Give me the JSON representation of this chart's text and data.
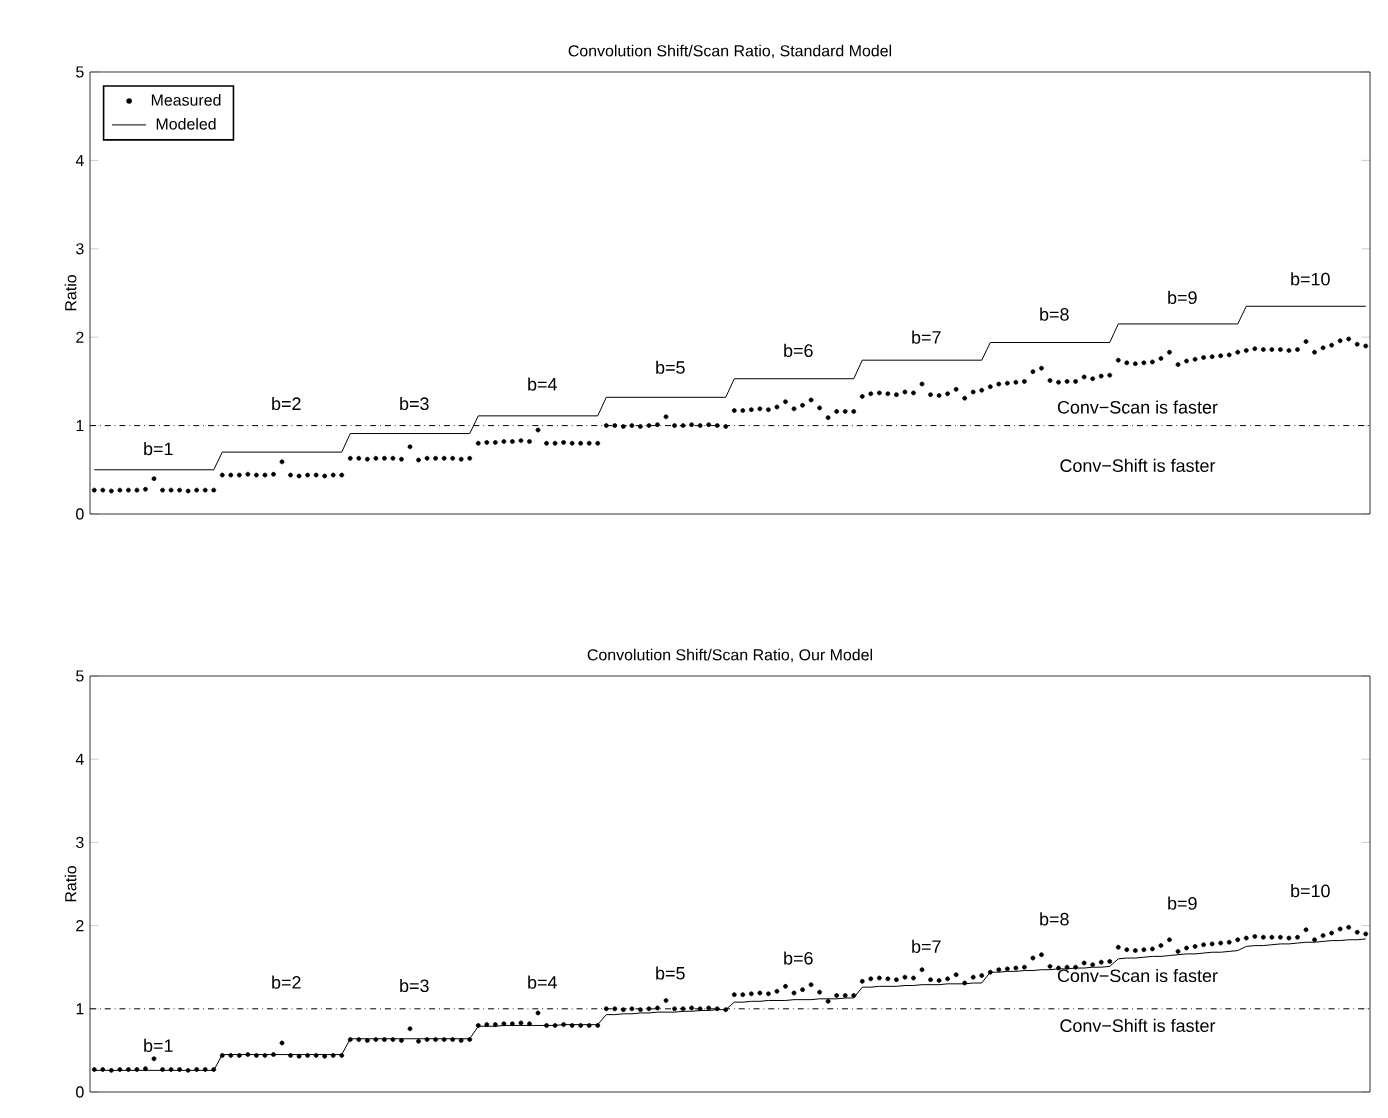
{
  "chart_data": [
    {
      "type": "scatter",
      "title": "Convolution Shift/Scan Ratio, Standard Model",
      "ylabel": "Ratio",
      "categories": [
        null,
        null,
        null,
        null,
        null,
        null,
        null,
        null,
        null,
        null,
        null,
        null,
        null,
        null,
        null,
        null,
        null,
        null,
        null,
        null,
        null,
        null,
        null,
        null,
        null,
        null,
        null,
        null,
        null,
        null,
        null,
        null,
        null,
        null,
        null,
        null,
        null,
        null,
        null,
        null,
        null,
        null,
        null,
        null,
        null,
        null,
        null,
        null,
        null,
        null,
        null,
        null,
        null,
        null,
        null,
        null,
        null,
        null,
        null,
        null,
        null,
        null,
        null,
        null,
        null,
        null,
        null,
        null,
        null,
        null,
        null,
        null,
        null,
        null,
        null,
        null,
        null,
        null,
        null,
        null,
        null,
        null,
        null,
        null,
        null,
        null,
        null,
        null,
        null,
        null,
        null,
        null,
        null,
        null,
        null,
        null,
        null,
        null,
        null,
        null,
        null,
        null,
        null,
        null,
        null,
        null,
        null,
        null,
        null,
        null,
        null,
        null,
        null,
        null,
        null,
        null,
        null,
        null,
        null,
        null,
        null,
        null,
        null,
        null,
        null,
        null,
        null,
        null,
        null,
        null,
        null,
        null,
        null,
        null,
        null,
        null,
        null,
        null,
        null,
        null,
        null,
        null,
        null,
        null,
        null,
        null,
        null,
        null,
        null,
        null
      ],
      "series": [
        {
          "name": "Measured",
          "marker": "circle",
          "color": "#000000",
          "values": [
            0.27,
            0.27,
            0.26,
            0.27,
            0.27,
            0.27,
            0.28,
            0.4,
            0.27,
            0.27,
            0.27,
            0.26,
            0.27,
            0.27,
            0.27,
            0.44,
            0.44,
            0.44,
            0.45,
            0.44,
            0.44,
            0.45,
            0.59,
            0.44,
            0.43,
            0.44,
            0.44,
            0.43,
            0.44,
            0.44,
            0.63,
            0.63,
            0.62,
            0.63,
            0.63,
            0.63,
            0.62,
            0.76,
            0.61,
            0.63,
            0.63,
            0.63,
            0.63,
            0.62,
            0.63,
            0.8,
            0.81,
            0.81,
            0.82,
            0.82,
            0.83,
            0.82,
            0.95,
            0.8,
            0.8,
            0.81,
            0.8,
            0.8,
            0.8,
            0.8,
            1.0,
            1.0,
            0.99,
            1.0,
            0.99,
            1.0,
            1.01,
            1.1,
            1.0,
            1.0,
            1.01,
            1.0,
            1.01,
            1.0,
            0.99,
            1.17,
            1.17,
            1.18,
            1.19,
            1.18,
            1.21,
            1.27,
            1.19,
            1.23,
            1.29,
            1.2,
            1.09,
            1.16,
            1.16,
            1.16,
            1.33,
            1.36,
            1.37,
            1.36,
            1.35,
            1.38,
            1.37,
            1.47,
            1.35,
            1.34,
            1.36,
            1.41,
            1.31,
            1.38,
            1.4,
            1.44,
            1.47,
            1.48,
            1.49,
            1.5,
            1.61,
            1.65,
            1.51,
            1.49,
            1.5,
            1.5,
            1.55,
            1.53,
            1.56,
            1.57,
            1.74,
            1.71,
            1.7,
            1.71,
            1.72,
            1.76,
            1.83,
            1.69,
            1.73,
            1.75,
            1.77,
            1.78,
            1.79,
            1.8,
            1.83,
            1.85,
            1.87,
            1.86,
            1.86,
            1.86,
            1.85,
            1.86,
            1.95,
            1.83,
            1.88,
            1.91,
            1.96,
            1.98,
            1.92,
            1.9
          ]
        },
        {
          "name": "Modeled",
          "type": "line",
          "marker": "none",
          "color": "#000000",
          "values": [
            0.5,
            0.5,
            0.5,
            0.5,
            0.5,
            0.5,
            0.5,
            0.5,
            0.5,
            0.5,
            0.5,
            0.5,
            0.5,
            0.5,
            0.5,
            0.7,
            0.7,
            0.7,
            0.7,
            0.7,
            0.7,
            0.7,
            0.7,
            0.7,
            0.7,
            0.7,
            0.7,
            0.7,
            0.7,
            0.7,
            0.91,
            0.91,
            0.91,
            0.91,
            0.91,
            0.91,
            0.91,
            0.91,
            0.91,
            0.91,
            0.91,
            0.91,
            0.91,
            0.91,
            0.91,
            1.11,
            1.11,
            1.11,
            1.11,
            1.11,
            1.11,
            1.11,
            1.11,
            1.11,
            1.11,
            1.11,
            1.11,
            1.11,
            1.11,
            1.11,
            1.32,
            1.32,
            1.32,
            1.32,
            1.32,
            1.32,
            1.32,
            1.32,
            1.32,
            1.32,
            1.32,
            1.32,
            1.32,
            1.32,
            1.32,
            1.53,
            1.53,
            1.53,
            1.53,
            1.53,
            1.53,
            1.53,
            1.53,
            1.53,
            1.53,
            1.53,
            1.53,
            1.53,
            1.53,
            1.53,
            1.74,
            1.74,
            1.74,
            1.74,
            1.74,
            1.74,
            1.74,
            1.74,
            1.74,
            1.74,
            1.74,
            1.74,
            1.74,
            1.74,
            1.74,
            1.94,
            1.94,
            1.94,
            1.94,
            1.94,
            1.94,
            1.94,
            1.94,
            1.94,
            1.94,
            1.94,
            1.94,
            1.94,
            1.94,
            1.94,
            2.15,
            2.15,
            2.15,
            2.15,
            2.15,
            2.15,
            2.15,
            2.15,
            2.15,
            2.15,
            2.15,
            2.15,
            2.15,
            2.15,
            2.15,
            2.35,
            2.35,
            2.35,
            2.35,
            2.35,
            2.35,
            2.35,
            2.35,
            2.35,
            2.35,
            2.35,
            2.35,
            2.35,
            2.35,
            2.35
          ]
        }
      ],
      "ylim": [
        0,
        5
      ],
      "yticks": [
        0,
        1,
        2,
        3,
        4,
        5
      ],
      "tick_labels": "y",
      "legend": "top left",
      "ref_lines": [
        {
          "axis": "y",
          "value": 1,
          "line_style": "dashdot"
        }
      ],
      "annotations": [
        "b=1",
        "b=2",
        "b=3",
        "b=4",
        "b=5",
        "b=6",
        "b=7",
        "b=8",
        "b=9",
        "b=10",
        "Conv−Scan is faster",
        "Conv−Shift is faster"
      ]
    },
    {
      "type": "scatter",
      "title": "Convolution Shift/Scan Ratio, Our Model",
      "ylabel": "Ratio",
      "categories": [
        null,
        null,
        null,
        null,
        null,
        null,
        null,
        null,
        null,
        null,
        null,
        null,
        null,
        null,
        null,
        null,
        null,
        null,
        null,
        null,
        null,
        null,
        null,
        null,
        null,
        null,
        null,
        null,
        null,
        null,
        null,
        null,
        null,
        null,
        null,
        null,
        null,
        null,
        null,
        null,
        null,
        null,
        null,
        null,
        null,
        null,
        null,
        null,
        null,
        null,
        null,
        null,
        null,
        null,
        null,
        null,
        null,
        null,
        null,
        null,
        null,
        null,
        null,
        null,
        null,
        null,
        null,
        null,
        null,
        null,
        null,
        null,
        null,
        null,
        null,
        null,
        null,
        null,
        null,
        null,
        null,
        null,
        null,
        null,
        null,
        null,
        null,
        null,
        null,
        null,
        null,
        null,
        null,
        null,
        null,
        null,
        null,
        null,
        null,
        null,
        null,
        null,
        null,
        null,
        null,
        null,
        null,
        null,
        null,
        null,
        null,
        null,
        null,
        null,
        null,
        null,
        null,
        null,
        null,
        null,
        null,
        null,
        null,
        null,
        null,
        null,
        null,
        null,
        null,
        null,
        null,
        null,
        null,
        null,
        null,
        null,
        null,
        null,
        null,
        null,
        null,
        null,
        null,
        null,
        null,
        null,
        null,
        null,
        null,
        null
      ],
      "series": [
        {
          "marker": "circle",
          "color": "#000000",
          "values": [
            0.27,
            0.27,
            0.26,
            0.27,
            0.27,
            0.27,
            0.28,
            0.4,
            0.27,
            0.27,
            0.27,
            0.26,
            0.27,
            0.27,
            0.27,
            0.44,
            0.44,
            0.44,
            0.45,
            0.44,
            0.44,
            0.45,
            0.59,
            0.44,
            0.43,
            0.44,
            0.44,
            0.43,
            0.44,
            0.44,
            0.63,
            0.63,
            0.62,
            0.63,
            0.63,
            0.63,
            0.62,
            0.76,
            0.61,
            0.63,
            0.63,
            0.63,
            0.63,
            0.62,
            0.63,
            0.8,
            0.81,
            0.81,
            0.82,
            0.82,
            0.83,
            0.82,
            0.95,
            0.8,
            0.8,
            0.81,
            0.8,
            0.8,
            0.8,
            0.8,
            1.0,
            1.0,
            0.99,
            1.0,
            0.99,
            1.0,
            1.01,
            1.1,
            1.0,
            1.0,
            1.01,
            1.0,
            1.01,
            1.0,
            0.99,
            1.17,
            1.17,
            1.18,
            1.19,
            1.18,
            1.21,
            1.27,
            1.19,
            1.23,
            1.29,
            1.2,
            1.09,
            1.16,
            1.16,
            1.16,
            1.33,
            1.36,
            1.37,
            1.36,
            1.35,
            1.38,
            1.37,
            1.47,
            1.35,
            1.34,
            1.36,
            1.41,
            1.31,
            1.38,
            1.4,
            1.44,
            1.47,
            1.48,
            1.49,
            1.5,
            1.61,
            1.65,
            1.51,
            1.49,
            1.5,
            1.5,
            1.55,
            1.53,
            1.56,
            1.57,
            1.74,
            1.71,
            1.7,
            1.71,
            1.72,
            1.76,
            1.83,
            1.69,
            1.73,
            1.75,
            1.77,
            1.78,
            1.79,
            1.8,
            1.83,
            1.85,
            1.87,
            1.86,
            1.86,
            1.86,
            1.85,
            1.86,
            1.95,
            1.83,
            1.88,
            1.91,
            1.96,
            1.98,
            1.92,
            1.9
          ]
        },
        {
          "type": "line",
          "marker": "none",
          "color": "#000000",
          "values": [
            0.26,
            0.26,
            0.26,
            0.26,
            0.26,
            0.26,
            0.26,
            0.26,
            0.26,
            0.26,
            0.26,
            0.26,
            0.26,
            0.26,
            0.26,
            0.45,
            0.45,
            0.45,
            0.45,
            0.45,
            0.45,
            0.45,
            0.45,
            0.45,
            0.45,
            0.45,
            0.45,
            0.45,
            0.45,
            0.45,
            0.64,
            0.64,
            0.64,
            0.64,
            0.64,
            0.64,
            0.64,
            0.64,
            0.64,
            0.64,
            0.64,
            0.64,
            0.64,
            0.64,
            0.64,
            0.79,
            0.79,
            0.79,
            0.8,
            0.8,
            0.8,
            0.8,
            0.8,
            0.8,
            0.8,
            0.81,
            0.81,
            0.81,
            0.81,
            0.81,
            0.93,
            0.93,
            0.94,
            0.94,
            0.95,
            0.95,
            0.96,
            0.96,
            0.96,
            0.97,
            0.97,
            0.98,
            0.98,
            0.99,
            0.99,
            1.08,
            1.08,
            1.09,
            1.09,
            1.1,
            1.1,
            1.1,
            1.11,
            1.11,
            1.11,
            1.12,
            1.12,
            1.12,
            1.13,
            1.13,
            1.26,
            1.26,
            1.27,
            1.27,
            1.27,
            1.28,
            1.28,
            1.29,
            1.29,
            1.29,
            1.3,
            1.3,
            1.3,
            1.31,
            1.31,
            1.44,
            1.44,
            1.45,
            1.45,
            1.46,
            1.46,
            1.47,
            1.47,
            1.48,
            1.48,
            1.49,
            1.49,
            1.5,
            1.5,
            1.51,
            1.6,
            1.61,
            1.61,
            1.62,
            1.63,
            1.63,
            1.64,
            1.65,
            1.66,
            1.66,
            1.67,
            1.68,
            1.68,
            1.69,
            1.7,
            1.75,
            1.76,
            1.76,
            1.77,
            1.78,
            1.78,
            1.79,
            1.8,
            1.8,
            1.81,
            1.82,
            1.82,
            1.83,
            1.83,
            1.84
          ]
        }
      ],
      "ylim": [
        0,
        5
      ],
      "yticks": [
        0,
        1,
        2,
        3,
        4,
        5
      ],
      "tick_labels": "y",
      "ref_lines": [
        {
          "axis": "y",
          "value": 1,
          "line_style": "dashdot"
        }
      ],
      "annotations": [
        "b=1",
        "b=2",
        "b=3",
        "b=4",
        "b=5",
        "b=6",
        "b=7",
        "b=8",
        "b=9",
        "b=10",
        "Conv−Scan is faster",
        "Conv−Shift is faster"
      ]
    }
  ]
}
